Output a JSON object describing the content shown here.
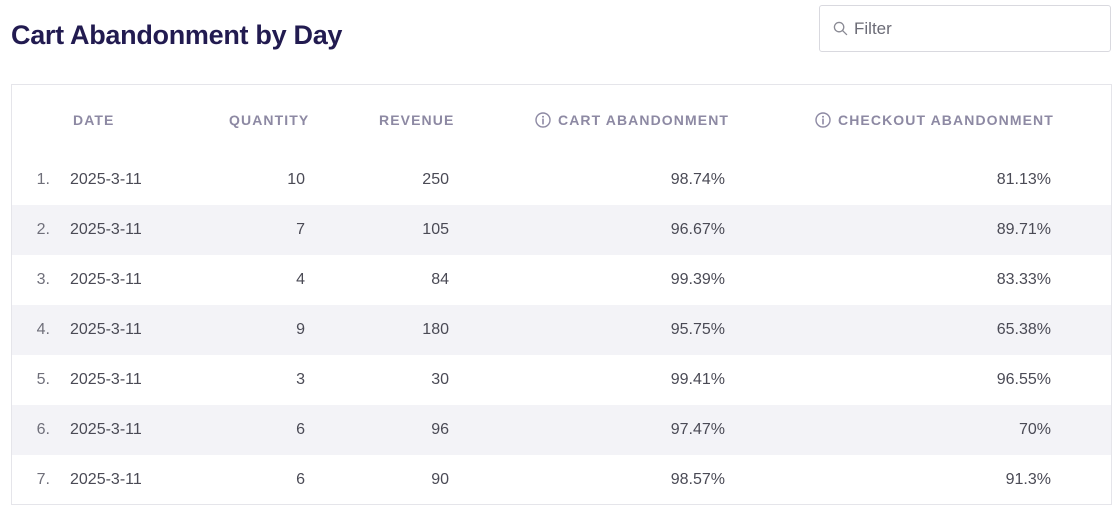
{
  "title": "Cart Abandonment by Day",
  "filter": {
    "placeholder": "Filter",
    "value": ""
  },
  "table": {
    "columns": {
      "date": "DATE",
      "quantity": "QUANTITY",
      "revenue": "REVENUE",
      "cart_abandonment": "CART ABANDONMENT",
      "checkout_abandonment": "CHECKOUT ABANDONMENT"
    },
    "rows": [
      {
        "index": "1.",
        "date": "2025-3-11",
        "quantity": "10",
        "revenue": "250",
        "cart": "98.74%",
        "checkout": "81.13%"
      },
      {
        "index": "2.",
        "date": "2025-3-11",
        "quantity": "7",
        "revenue": "105",
        "cart": "96.67%",
        "checkout": "89.71%"
      },
      {
        "index": "3.",
        "date": "2025-3-11",
        "quantity": "4",
        "revenue": "84",
        "cart": "99.39%",
        "checkout": "83.33%"
      },
      {
        "index": "4.",
        "date": "2025-3-11",
        "quantity": "9",
        "revenue": "180",
        "cart": "95.75%",
        "checkout": "65.38%"
      },
      {
        "index": "5.",
        "date": "2025-3-11",
        "quantity": "3",
        "revenue": "30",
        "cart": "99.41%",
        "checkout": "96.55%"
      },
      {
        "index": "6.",
        "date": "2025-3-11",
        "quantity": "6",
        "revenue": "96",
        "cart": "97.47%",
        "checkout": "70%"
      },
      {
        "index": "7.",
        "date": "2025-3-11",
        "quantity": "6",
        "revenue": "90",
        "cart": "98.57%",
        "checkout": "91.3%"
      }
    ]
  },
  "colors": {
    "title": "#221b50",
    "header_text": "#8d89a3",
    "row_alt": "#f3f3f7"
  },
  "icons": {
    "filter": "search-icon",
    "column_info": "info-icon"
  }
}
